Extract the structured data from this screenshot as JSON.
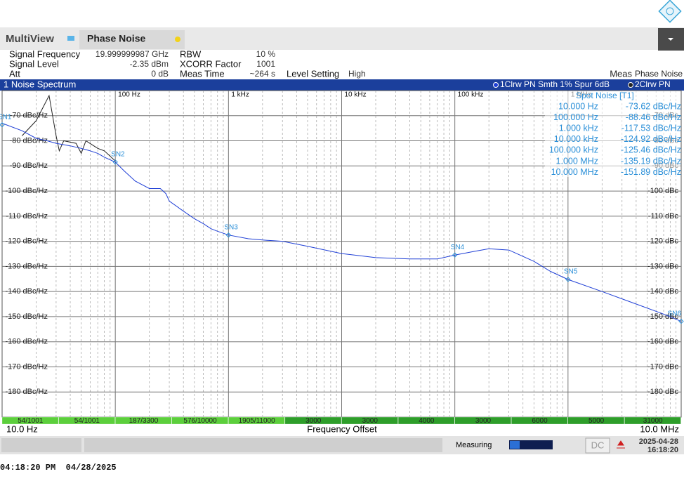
{
  "header": {
    "app": "MultiView",
    "tab": "Phase Noise"
  },
  "settings": [
    {
      "label": "Signal Frequency",
      "value": "19.999999987 GHz"
    },
    {
      "label": "Signal Level",
      "value": "-2.35 dBm"
    },
    {
      "label": "Att",
      "value": "0 dB"
    },
    {
      "label": "RBW",
      "value": "10 %"
    },
    {
      "label": "XCORR Factor",
      "value": "1001"
    },
    {
      "label": "Meas Time",
      "value": "~264 s"
    },
    {
      "label": "Level Setting",
      "value": "High"
    }
  ],
  "meas": {
    "label": "Meas",
    "value": "Phase Noise"
  },
  "chart_data": {
    "type": "line",
    "title": "1 Noise Spectrum",
    "xscale": "log",
    "xlim": [
      10,
      10000000
    ],
    "xticks": [
      {
        "value": 100,
        "label": "100 Hz"
      },
      {
        "value": 1000,
        "label": "1 kHz"
      },
      {
        "value": 10000,
        "label": "10 kHz"
      },
      {
        "value": 100000,
        "label": "100 kHz"
      },
      {
        "value": 1000000,
        "label": "1 MHz"
      }
    ],
    "ylim": [
      -190,
      -60
    ],
    "yticks": [
      {
        "value": -70,
        "label": "-70 dBc/Hz"
      },
      {
        "value": -80,
        "label": "-80 dBc/Hz"
      },
      {
        "value": -90,
        "label": "-90 dBc/Hz"
      },
      {
        "value": -100,
        "label": "-100 dBc/Hz"
      },
      {
        "value": -110,
        "label": "-110 dBc/Hz"
      },
      {
        "value": -120,
        "label": "-120 dBc/Hz"
      },
      {
        "value": -130,
        "label": "-130 dBc/Hz"
      },
      {
        "value": -140,
        "label": "-140 dBc/Hz"
      },
      {
        "value": -150,
        "label": "-150 dBc/Hz"
      },
      {
        "value": -160,
        "label": "-160 dBc/Hz"
      },
      {
        "value": -170,
        "label": "-170 dBc/Hz"
      },
      {
        "value": -180,
        "label": "-180 dBc/Hz"
      }
    ],
    "y2lim": [
      -190,
      -60
    ],
    "y2ticks": [
      {
        "value": -70,
        "label": "-70 dBc"
      },
      {
        "value": -80,
        "label": "-80 dBc"
      },
      {
        "value": -90,
        "label": "-90 dBc"
      },
      {
        "value": -100,
        "label": "-100 dBc"
      },
      {
        "value": -110,
        "label": "-110 dBc"
      },
      {
        "value": -120,
        "label": "-120 dBc"
      },
      {
        "value": -130,
        "label": "-130 dBc"
      },
      {
        "value": -140,
        "label": "-140 dBc"
      },
      {
        "value": -150,
        "label": "-150 dBc"
      },
      {
        "value": -160,
        "label": "-160 dBc"
      },
      {
        "value": -170,
        "label": "-170 dBc"
      },
      {
        "value": -180,
        "label": "-180 dBc"
      }
    ],
    "grid": true,
    "series": [
      {
        "name": "1Clrw PN Smth 1% Spur 6dB",
        "color": "#1f3fd6",
        "x": [
          10,
          15,
          20,
          25,
          30,
          40,
          50,
          60,
          70,
          80,
          100,
          120,
          150,
          200,
          250,
          280,
          300,
          400,
          500,
          600,
          700,
          800,
          1000,
          1500,
          2000,
          3000,
          5000,
          10000,
          20000,
          40000,
          70000,
          100000,
          150000,
          200000,
          300000,
          500000,
          700000,
          1000000,
          2000000,
          4000000,
          7000000,
          10000000
        ],
        "values": [
          -73,
          -76,
          -79,
          -80,
          -81,
          -82,
          -83,
          -84,
          -85,
          -86.5,
          -88.5,
          -92,
          -96,
          -99,
          -99,
          -101,
          -104,
          -108,
          -111,
          -113,
          -115,
          -116,
          -117.5,
          -119,
          -119.5,
          -120,
          -122,
          -124.9,
          -126.5,
          -127,
          -127,
          -125.5,
          -124,
          -123,
          -123.5,
          -128,
          -132,
          -135.2,
          -140,
          -145,
          -149,
          -151.9
        ]
      },
      {
        "name": "2Clrw PN",
        "color": "#222222",
        "x": [
          15,
          20,
          26,
          30,
          32,
          35,
          45,
          50,
          55,
          70,
          80,
          100
        ],
        "values": [
          -78,
          -72,
          -62,
          -78,
          -84,
          -80,
          -81,
          -85,
          -80,
          -83,
          -84,
          -88
        ]
      }
    ],
    "markers": [
      {
        "label": "SN1",
        "x": 10,
        "value": -73.62
      },
      {
        "label": "SN2",
        "x": 100,
        "value": -88.46
      },
      {
        "label": "SN3",
        "x": 1000,
        "value": -117.53
      },
      {
        "label": "SN4",
        "x": 100000,
        "value": -125.46
      },
      {
        "label": "SN5",
        "x": 1000000,
        "value": -135.19
      },
      {
        "label": "SN6",
        "x": 10000000,
        "value": -151.89
      }
    ],
    "spot_noise": {
      "title": "Spot Noise [T1]",
      "rows": [
        [
          "10.000 Hz",
          "-73.62 dBc/Hz"
        ],
        [
          "100.000 Hz",
          "-88.46 dBc/Hz"
        ],
        [
          "1.000 kHz",
          "-117.53 dBc/Hz"
        ],
        [
          "10.000 kHz",
          "-124.92 dBc/Hz"
        ],
        [
          "100.000 kHz",
          "-125.46 dBc/Hz"
        ],
        [
          "1.000 MHz",
          "-135.19 dBc/Hz"
        ],
        [
          "10.000 MHz",
          "-151.89 dBc/Hz"
        ]
      ]
    },
    "segments": [
      {
        "label": "54/1001",
        "color": "#5ccf3c"
      },
      {
        "label": "54/1001",
        "color": "#5ccf3c"
      },
      {
        "label": "187/3300",
        "color": "#5ccf3c"
      },
      {
        "label": "576/10000",
        "color": "#5ccf3c"
      },
      {
        "label": "1905/11000",
        "color": "#5ccf3c"
      },
      {
        "label": "3000",
        "color": "#2e9e2a"
      },
      {
        "label": "3000",
        "color": "#2e9e2a"
      },
      {
        "label": "4000",
        "color": "#2e9e2a"
      },
      {
        "label": "3000",
        "color": "#2e9e2a"
      },
      {
        "label": "6000",
        "color": "#2e9e2a"
      },
      {
        "label": "5000",
        "color": "#2e9e2a"
      },
      {
        "label": "31000",
        "color": "#2e9e2a"
      }
    ],
    "x_start_label": "10.0 Hz",
    "xlabel": "Frequency Offset",
    "x_stop_label": "10.0 MHz"
  },
  "status": {
    "state": "Measuring",
    "button": "DC",
    "date": "2025-04-28",
    "time": "16:18:20"
  },
  "footer": "04:18:20 PM  04/28/2025"
}
